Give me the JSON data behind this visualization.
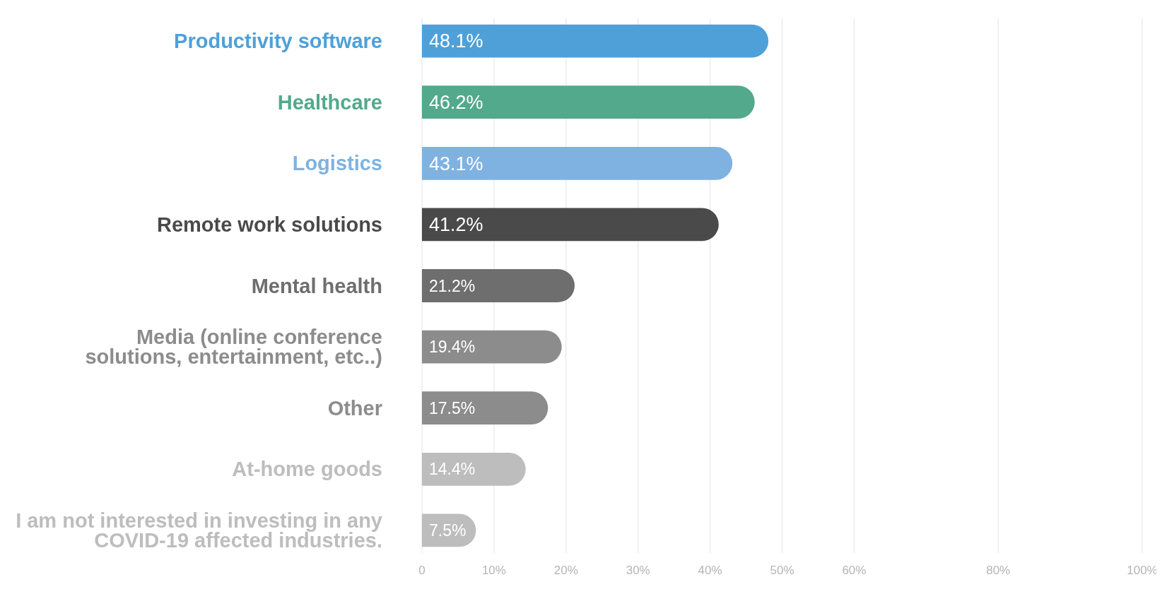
{
  "chart_data": {
    "type": "bar",
    "orientation": "horizontal",
    "categories": [
      "Productivity software",
      "Healthcare",
      "Logistics",
      "Remote work solutions",
      "Mental health",
      "Media (online conference solutions, entertainment, etc..)",
      "Other",
      "At-home goods",
      "I am not interested in investing in any COVID-19 affected industries."
    ],
    "values": [
      48.1,
      46.2,
      43.1,
      41.2,
      21.2,
      19.4,
      17.5,
      14.4,
      7.5
    ],
    "colors": [
      "#4fa0d8",
      "#52a98c",
      "#7fb2e0",
      "#4a4a4a",
      "#6e6e6e",
      "#8c8c8c",
      "#8c8c8c",
      "#bdbdbd",
      "#bdbdbd"
    ],
    "value_labels": [
      "48.1%",
      "46.2%",
      "43.1%",
      "41.2%",
      "21.2%",
      "19.4%",
      "17.5%",
      "14.4%",
      "7.5%"
    ],
    "xlim": [
      0,
      100
    ],
    "xticks": [
      0,
      {
        "value": 10,
        "label": "10%"
      },
      {
        "value": 20,
        "label": "20%"
      },
      {
        "value": 30,
        "label": "30%"
      },
      {
        "value": 40,
        "label": "40%"
      },
      {
        "value": 50,
        "label": "50%"
      },
      {
        "value": 60,
        "label": "60%"
      },
      {
        "value": 80,
        "label": "80%"
      },
      {
        "value": 100,
        "label": "100%"
      }
    ],
    "grid": "x"
  }
}
